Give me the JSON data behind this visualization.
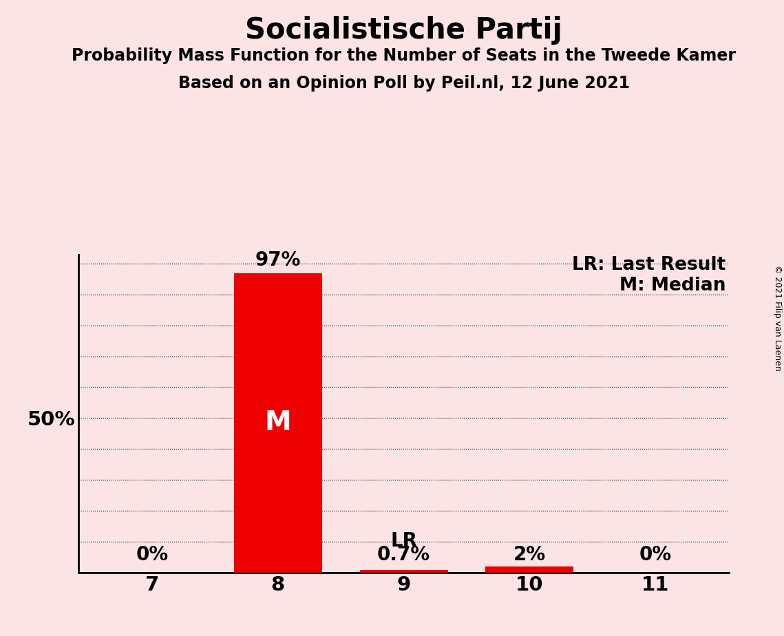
{
  "title": "Socialistische Partij",
  "subtitle1": "Probability Mass Function for the Number of Seats in the Tweede Kamer",
  "subtitle2": "Based on an Opinion Poll by Peil.nl, 12 June 2021",
  "copyright": "© 2021 Filip van Laenen",
  "categories": [
    7,
    8,
    9,
    10,
    11
  ],
  "values": [
    0.0,
    97.0,
    0.7,
    2.0,
    0.0
  ],
  "bar_labels": [
    "0%",
    "97%",
    "0.7%",
    "2%",
    "0%"
  ],
  "median_bar_idx": 1,
  "lr_bar_idx": 2,
  "legend_lr": "LR: Last Result",
  "legend_m": "M: Median",
  "median_label": "M",
  "lr_label": "LR",
  "background_color": "#fce4e4",
  "bar_color": "#ee0000",
  "ylim": [
    0,
    103
  ],
  "ytick_lines": [
    0,
    10,
    20,
    30,
    40,
    50,
    60,
    70,
    80,
    90,
    100
  ],
  "ylabel_50": "50%",
  "title_fontsize": 30,
  "subtitle_fontsize": 17,
  "label_fontsize": 20,
  "tick_fontsize": 21,
  "legend_fontsize": 19,
  "median_fontsize": 28,
  "copyright_fontsize": 9,
  "bar_width": 0.7
}
